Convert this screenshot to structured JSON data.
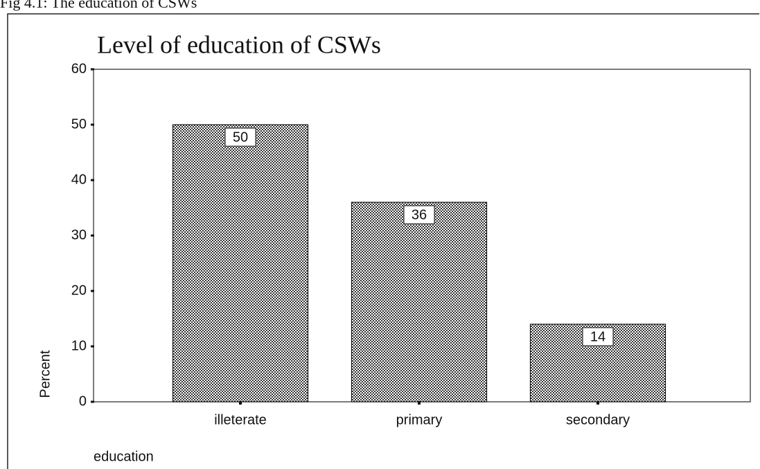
{
  "chart_data": {
    "type": "bar",
    "caption": "Fig 4.1: The education of CSWs",
    "title": "Level of education of CSWs",
    "x_label": "education",
    "y_label": "Percent",
    "categories": [
      "illeterate",
      "primary",
      "secondary"
    ],
    "values": [
      50,
      36,
      14
    ],
    "color": "#555555",
    "ylim": [
      0,
      60
    ],
    "yticks": [
      0,
      10,
      20,
      30,
      40,
      50,
      60
    ],
    "grid": false
  }
}
